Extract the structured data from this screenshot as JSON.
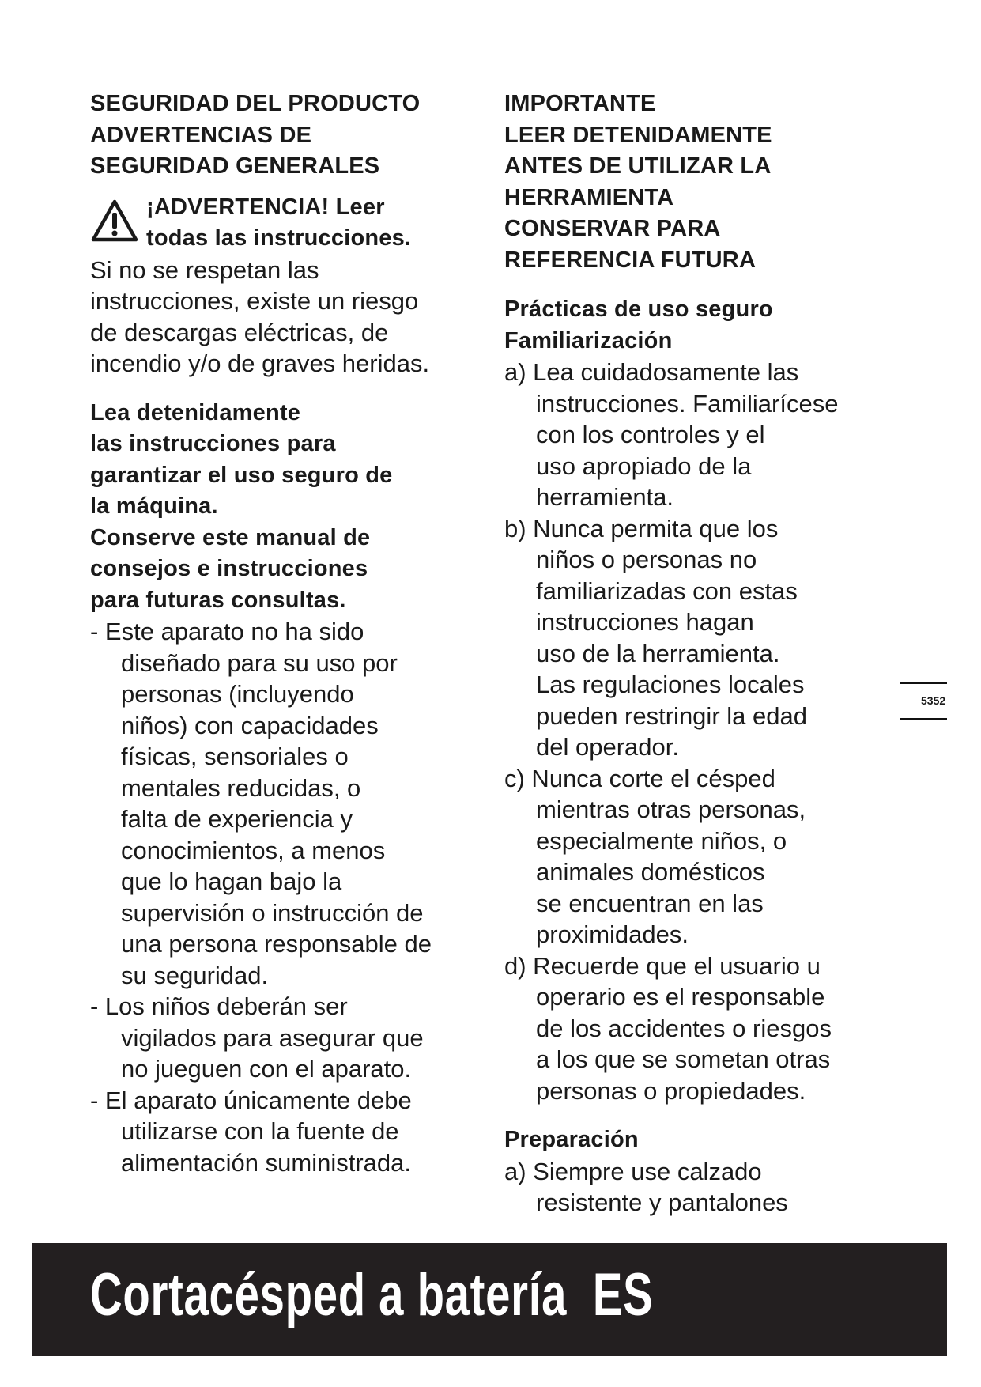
{
  "left": {
    "heading": [
      "SEGURIDAD DEL PRODUCTO",
      "ADVERTENCIAS DE",
      "SEGURIDAD GENERALES"
    ],
    "warning_icon": "warning-triangle-icon",
    "warning": [
      "¡ADVERTENCIA! Leer",
      "todas las instrucciones."
    ],
    "warning_body": [
      "Si no se respetan las",
      "instrucciones, existe un riesgo",
      "de descargas eléctricas, de",
      "incendio y/o de graves heridas."
    ],
    "bold_note": [
      "Lea detenidamente",
      "las instrucciones para",
      "garantizar el uso seguro de",
      "la máquina.",
      "Conserve este manual de",
      "consejos e instrucciones",
      "para futuras consultas."
    ],
    "bullets": [
      [
        "-  Este aparato no ha sido",
        "diseñado para su uso por",
        "personas (incluyendo",
        "niños) con capacidades",
        "físicas, sensoriales o",
        "mentales reducidas, o",
        "falta de experiencia y",
        "conocimientos, a menos",
        "que lo hagan bajo la",
        "supervisión o instrucción de",
        "una persona responsable de",
        "su seguridad."
      ],
      [
        "-  Los niños deberán ser",
        "vigilados para asegurar que",
        "no jueguen con el aparato."
      ],
      [
        "-  El aparato únicamente debe",
        "utilizarse con la fuente de",
        "alimentación suministrada."
      ]
    ]
  },
  "right": {
    "heading": [
      "IMPORTANTE",
      "LEER DETENIDAMENTE",
      "ANTES DE UTILIZAR LA",
      "HERRAMIENTA",
      "CONSERVAR PARA",
      "REFERENCIA FUTURA"
    ],
    "section1_title": [
      "Prácticas de uso seguro",
      "Familiarización"
    ],
    "section1_items": [
      [
        "a) Lea cuidadosamente las",
        "instrucciones. Familiarícese",
        "con los controles y el",
        "uso apropiado de la",
        "herramienta."
      ],
      [
        "b) Nunca permita que los",
        "niños o personas no",
        "familiarizadas con estas",
        "instrucciones hagan",
        "uso de la herramienta.",
        "Las regulaciones locales",
        "pueden restringir la edad",
        "del operador."
      ],
      [
        "c) Nunca corte el césped",
        "mientras otras personas,",
        "especialmente niños, o",
        "animales domésticos",
        "se encuentran en las",
        "proximidades."
      ],
      [
        "d) Recuerde que el usuario u",
        "operario es el responsable",
        "de los accidentes o riesgos",
        "a los que se sometan otras",
        "personas o propiedades."
      ]
    ],
    "section2_title": "Preparación",
    "section2_items": [
      [
        "a) Siempre use calzado",
        "resistente y pantalones"
      ]
    ]
  },
  "side_tab": {
    "page_number": "5352"
  },
  "footer": {
    "title": "Cortacésped a batería  ES",
    "background": "#231f20"
  }
}
